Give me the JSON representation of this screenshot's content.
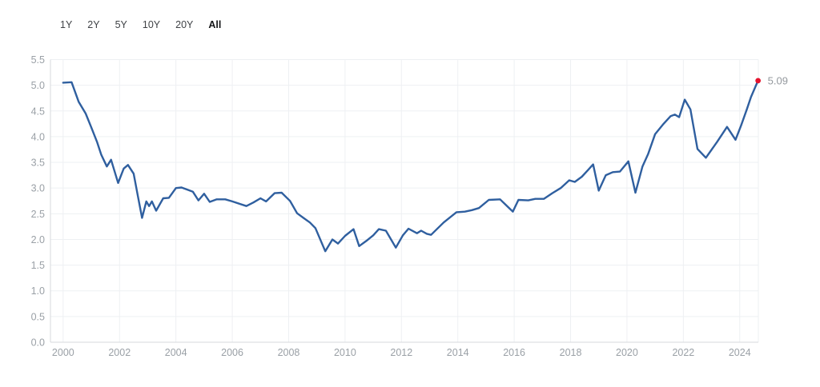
{
  "time_range_selector": {
    "options": [
      {
        "label": "1Y",
        "selected": false
      },
      {
        "label": "2Y",
        "selected": false
      },
      {
        "label": "5Y",
        "selected": false
      },
      {
        "label": "10Y",
        "selected": false
      },
      {
        "label": "20Y",
        "selected": false
      },
      {
        "label": "All",
        "selected": true
      }
    ]
  },
  "chart_data": {
    "type": "line",
    "title": "",
    "xlabel": "",
    "ylabel": "",
    "grid": true,
    "legend_position": "none",
    "x_tick_labels": [
      "2000",
      "2002",
      "2004",
      "2006",
      "2008",
      "2010",
      "2012",
      "2014",
      "2016",
      "2018",
      "2020",
      "2022",
      "2024"
    ],
    "x_tick_years": [
      2000,
      2002,
      2004,
      2006,
      2008,
      2010,
      2012,
      2014,
      2016,
      2018,
      2020,
      2022,
      2024
    ],
    "y_tick_labels": [
      "0.0",
      "0.5",
      "1.0",
      "1.5",
      "2.0",
      "2.5",
      "3.0",
      "3.5",
      "4.0",
      "4.5",
      "5.0",
      "5.5"
    ],
    "y_tick_values": [
      0,
      0.5,
      1,
      1.5,
      2,
      2.5,
      3,
      3.5,
      4,
      4.5,
      5,
      5.5
    ],
    "ylim": [
      0,
      5.5
    ],
    "xlim": [
      1999.55,
      2024.66
    ],
    "line_color": "#2f5f9f",
    "series": [
      {
        "name": "value",
        "x": [
          2000.0,
          2000.3,
          2000.55,
          2000.8,
          2001.0,
          2001.2,
          2001.35,
          2001.55,
          2001.7,
          2001.95,
          2002.15,
          2002.3,
          2002.5,
          2002.65,
          2002.8,
          2002.95,
          2003.05,
          2003.15,
          2003.3,
          2003.55,
          2003.75,
          2004.0,
          2004.2,
          2004.45,
          2004.6,
          2004.8,
          2005.0,
          2005.2,
          2005.45,
          2005.75,
          2006.0,
          2006.5,
          2006.75,
          2007.0,
          2007.2,
          2007.5,
          2007.75,
          2008.05,
          2008.3,
          2008.55,
          2008.75,
          2008.95,
          2009.3,
          2009.55,
          2009.75,
          2010.0,
          2010.3,
          2010.5,
          2010.75,
          2011.0,
          2011.2,
          2011.45,
          2011.8,
          2012.05,
          2012.25,
          2012.55,
          2012.7,
          2012.9,
          2013.05,
          2013.5,
          2013.95,
          2014.25,
          2014.5,
          2014.75,
          2015.1,
          2015.5,
          2015.95,
          2016.15,
          2016.5,
          2016.75,
          2017.05,
          2017.35,
          2017.65,
          2017.95,
          2018.15,
          2018.4,
          2018.6,
          2018.8,
          2019.0,
          2019.25,
          2019.5,
          2019.75,
          2020.05,
          2020.3,
          2020.55,
          2020.75,
          2021.0,
          2021.3,
          2021.55,
          2021.7,
          2021.85,
          2022.05,
          2022.25,
          2022.5,
          2022.8,
          2023.2,
          2023.55,
          2023.85,
          2024.05,
          2024.25,
          2024.4,
          2024.65
        ],
        "values": [
          5.05,
          5.06,
          4.68,
          4.45,
          4.18,
          3.9,
          3.65,
          3.42,
          3.55,
          3.1,
          3.38,
          3.45,
          3.28,
          2.85,
          2.42,
          2.74,
          2.65,
          2.74,
          2.56,
          2.8,
          2.81,
          3.0,
          3.01,
          2.96,
          2.93,
          2.76,
          2.89,
          2.73,
          2.78,
          2.78,
          2.74,
          2.65,
          2.72,
          2.8,
          2.74,
          2.9,
          2.91,
          2.75,
          2.51,
          2.41,
          2.33,
          2.22,
          1.77,
          2.0,
          1.92,
          2.07,
          2.2,
          1.87,
          1.97,
          2.08,
          2.2,
          2.17,
          1.84,
          2.08,
          2.21,
          2.12,
          2.17,
          2.11,
          2.09,
          2.33,
          2.53,
          2.54,
          2.57,
          2.61,
          2.77,
          2.78,
          2.54,
          2.77,
          2.76,
          2.79,
          2.79,
          2.9,
          3.0,
          3.15,
          3.12,
          3.22,
          3.34,
          3.46,
          2.95,
          3.25,
          3.31,
          3.32,
          3.52,
          2.91,
          3.42,
          3.66,
          4.05,
          4.25,
          4.4,
          4.43,
          4.38,
          4.72,
          4.53,
          3.76,
          3.59,
          3.9,
          4.19,
          3.94,
          4.22,
          4.53,
          4.77,
          5.09
        ]
      }
    ],
    "last_point": {
      "x": 2024.65,
      "value": 5.09,
      "label": "5.09",
      "dot_color": "#e5132e"
    }
  }
}
